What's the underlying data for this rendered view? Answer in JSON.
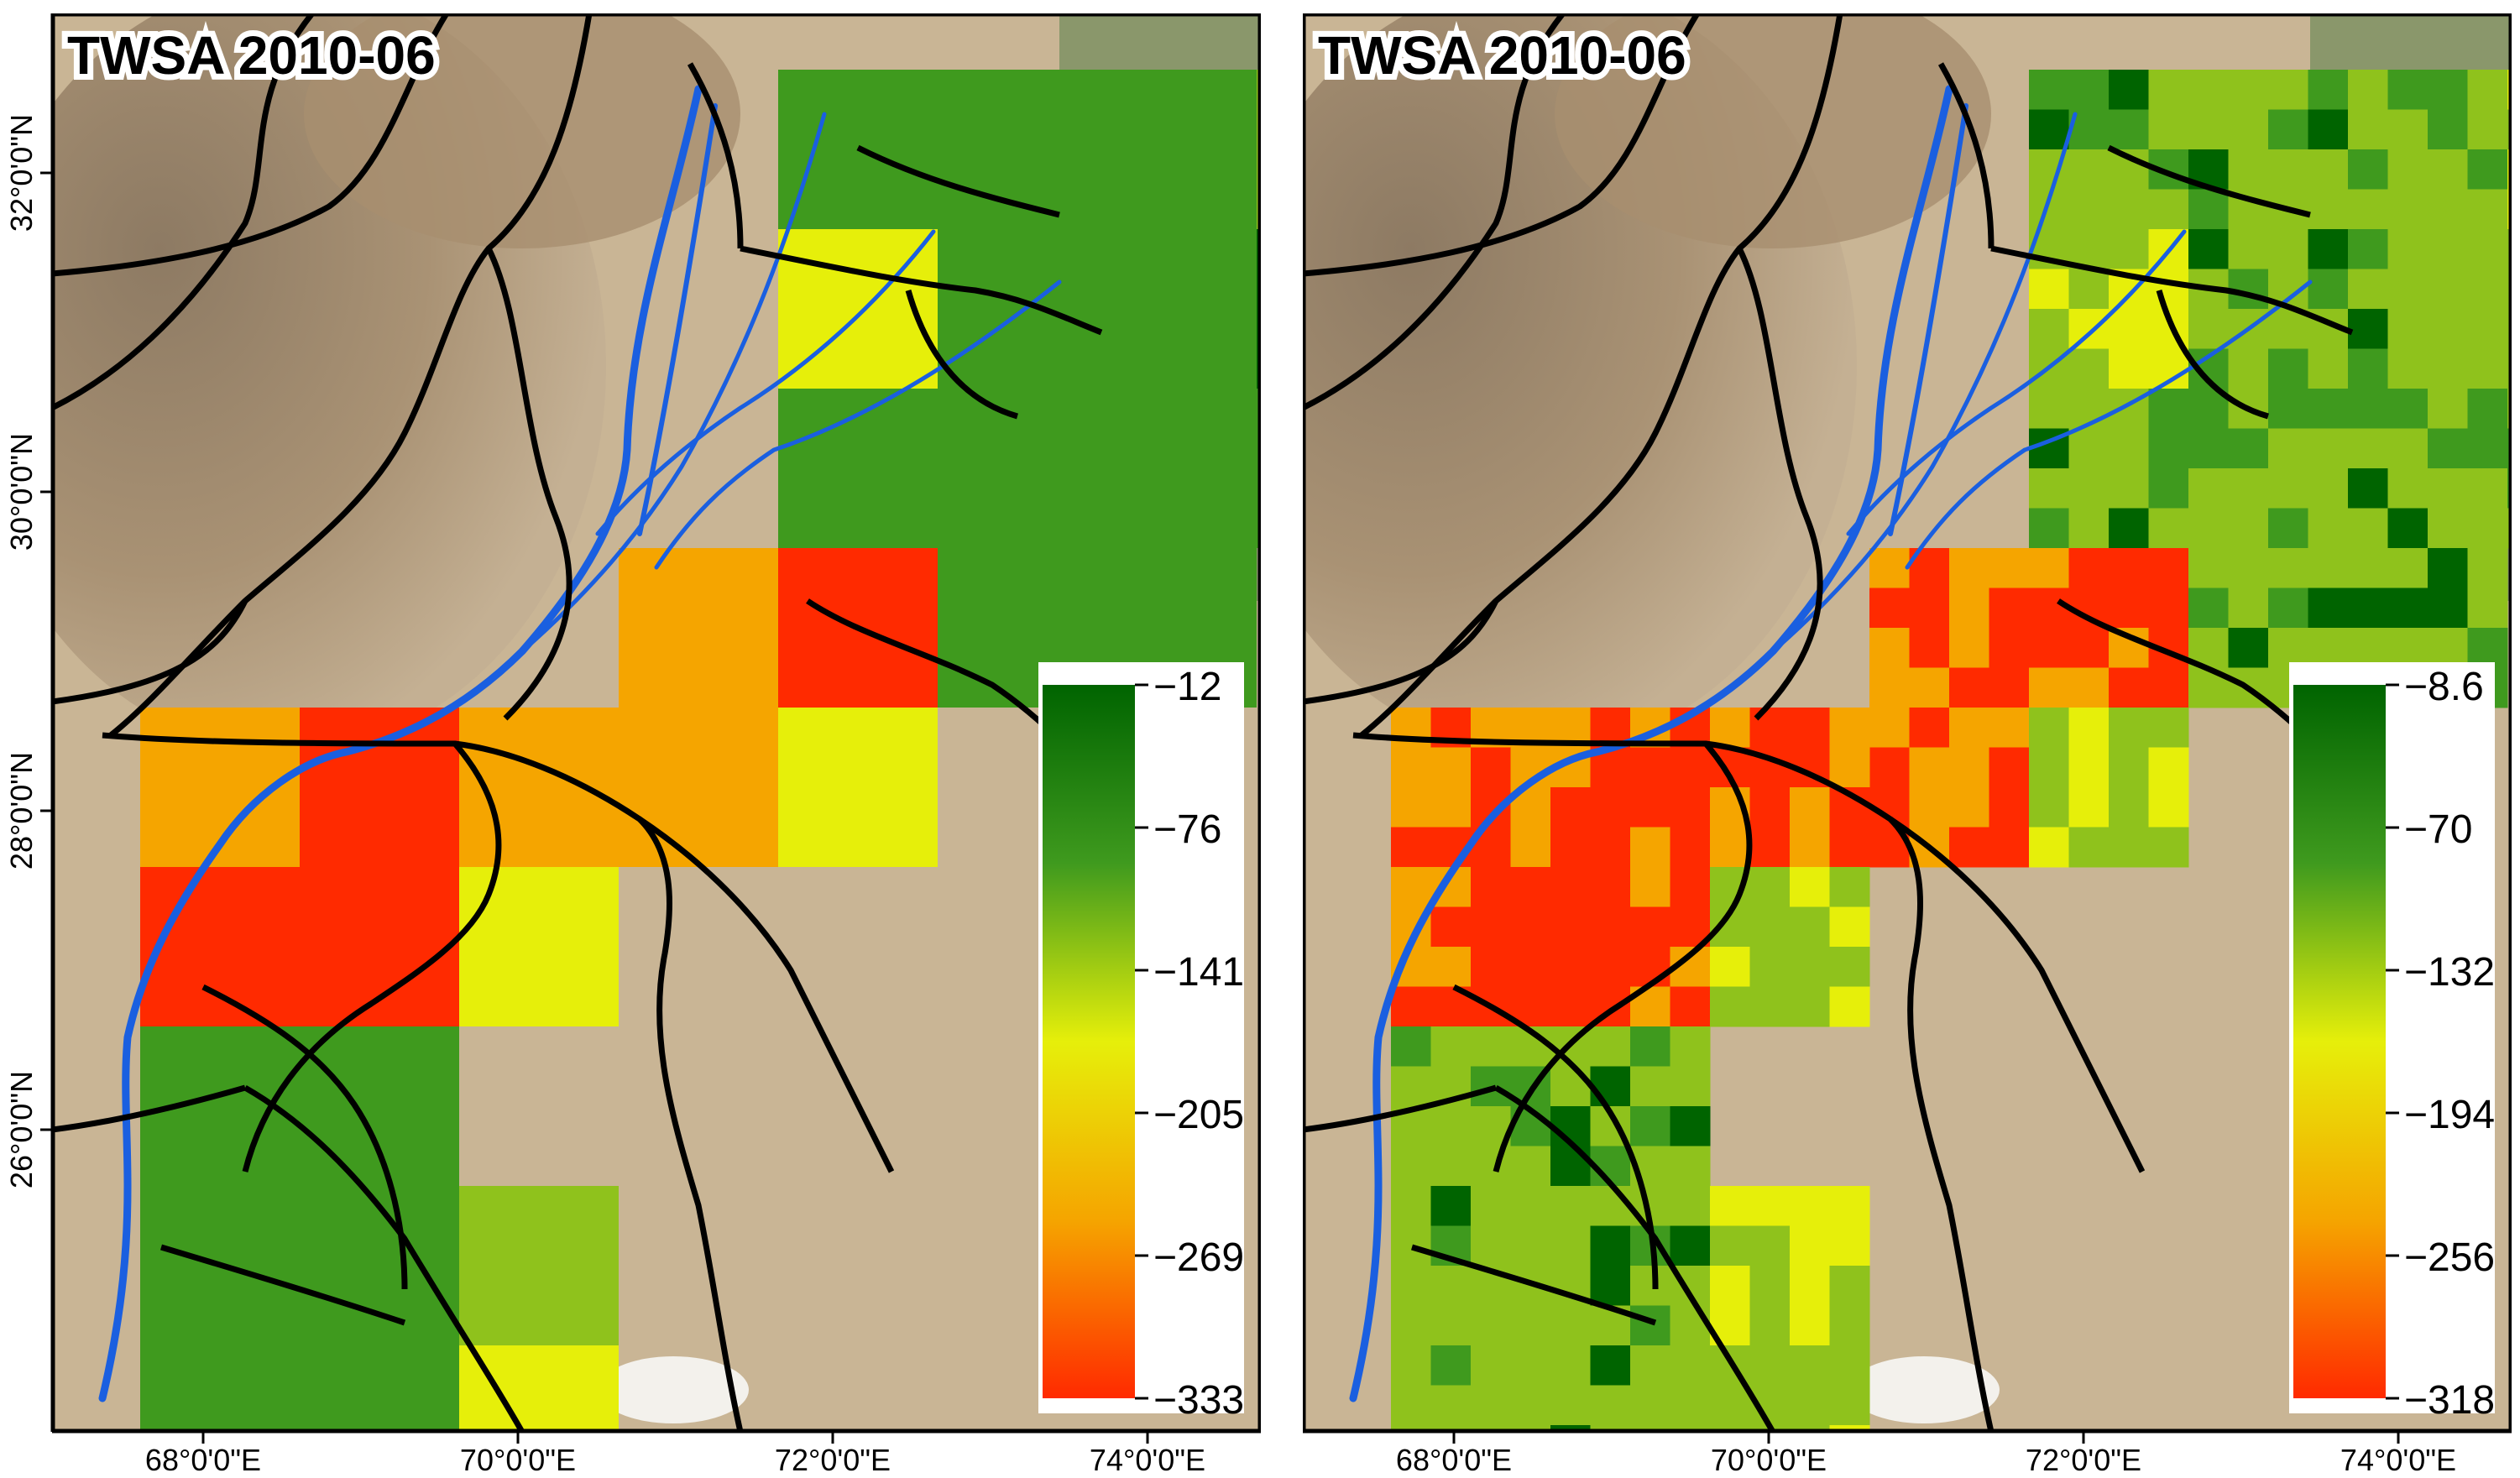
{
  "figure": {
    "description_free": true,
    "x_axis_labels": [
      "68°0'0\"E",
      "70°0'0\"E",
      "72°0'0\"E",
      "74°0'0\"E"
    ],
    "y_axis_labels": [
      "32°0'0\"N",
      "30°0'0\"N",
      "28°0'0\"N",
      "26°0'0\"N"
    ],
    "colors": {
      "high": "#006400",
      "mid_green": "#3f9a1e",
      "light_green": "#8fc21c",
      "yellow": "#e6ef0a",
      "orange": "#f5a500",
      "low": "#ff2a00",
      "river": "#1a5fe0",
      "border": "#000000",
      "desert": "#c9b595",
      "mountains": "#a99274"
    },
    "panels": [
      {
        "title": "TWSA 2010-06",
        "legend": {
          "ticks": [
            "-12",
            "-76",
            "-141",
            "-205",
            "-269",
            "-333"
          ]
        }
      },
      {
        "title": "TWSA 2010-06",
        "legend": {
          "ticks": [
            "-8.6",
            "-70",
            "-132",
            "-194",
            "-256",
            "-318"
          ]
        }
      }
    ]
  },
  "chart_data": {
    "type": "heatmap",
    "variable": "TWSA",
    "date": "2010-06",
    "x_range_deg_e": [
      67.4,
      74.8
    ],
    "y_range_deg_n": [
      24.3,
      32.9
    ],
    "panels": [
      {
        "title": "TWSA 2010-06",
        "resolution": "coarse 1 degree",
        "colorbar_min": -333,
        "colorbar_max": -12,
        "colorbar_ticks": [
          -12,
          -76,
          -141,
          -205,
          -269,
          -333
        ]
      },
      {
        "title": "TWSA 2010-06",
        "resolution": "fine 0.25 degree",
        "colorbar_min": -318,
        "colorbar_max": -8.6,
        "colorbar_ticks": [
          -8.6,
          -70,
          -132,
          -194,
          -256,
          -318
        ]
      }
    ]
  }
}
